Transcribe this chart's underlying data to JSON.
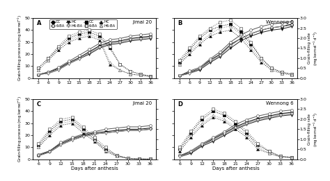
{
  "superior_x": [
    3,
    6,
    9,
    12,
    15,
    18,
    21,
    24,
    27,
    30,
    33,
    36
  ],
  "inferior_x": [
    6,
    9,
    12,
    15,
    18,
    21,
    24,
    27,
    30,
    33,
    36
  ],
  "A_process": {
    "CC": [
      3,
      5,
      8,
      13,
      17,
      22,
      27,
      30,
      31,
      33,
      34,
      35
    ],
    "6BA": [
      3,
      5,
      9,
      14,
      19,
      24,
      29,
      32,
      33,
      35,
      36,
      37
    ],
    "HC": [
      3,
      4,
      7,
      12,
      16,
      20,
      25,
      28,
      29,
      31,
      32,
      33
    ],
    "H6BA": [
      3,
      4,
      7,
      12,
      16,
      21,
      26,
      29,
      30,
      32,
      33,
      34
    ]
  },
  "A_rate": {
    "CC": [
      0.5,
      1.0,
      1.5,
      2.0,
      2.2,
      2.3,
      2.1,
      1.5,
      0.7,
      0.35,
      0.2,
      0.1
    ],
    "6BA": [
      0.5,
      1.0,
      1.6,
      2.1,
      2.3,
      2.4,
      2.2,
      1.6,
      0.7,
      0.35,
      0.2,
      0.1
    ],
    "HC": [
      0.4,
      0.9,
      1.4,
      1.8,
      2.0,
      2.1,
      1.9,
      0.7,
      0.4,
      0.2,
      0.15,
      0.08
    ],
    "H6BA": [
      0.4,
      0.9,
      1.5,
      1.9,
      2.1,
      2.2,
      2.0,
      0.8,
      0.4,
      0.2,
      0.15,
      0.08
    ]
  },
  "B_process": {
    "CC": [
      2,
      5,
      8,
      15,
      20,
      28,
      33,
      37,
      40,
      42,
      43,
      45
    ],
    "6BA": [
      2,
      6,
      9,
      16,
      22,
      30,
      36,
      40,
      43,
      45,
      46,
      47
    ],
    "HC": [
      2,
      4,
      7,
      13,
      18,
      25,
      31,
      35,
      38,
      40,
      41,
      43
    ],
    "H6BA": [
      2,
      4,
      8,
      14,
      19,
      27,
      33,
      37,
      40,
      42,
      43,
      44
    ]
  },
  "B_rate": {
    "CC": [
      0.8,
      1.4,
      2.0,
      2.4,
      2.6,
      2.7,
      2.3,
      1.7,
      1.0,
      0.5,
      0.3,
      0.2
    ],
    "6BA": [
      0.9,
      1.5,
      2.1,
      2.5,
      2.8,
      2.9,
      2.5,
      1.8,
      1.0,
      0.5,
      0.3,
      0.2
    ],
    "HC": [
      0.7,
      1.2,
      1.7,
      2.1,
      2.3,
      2.4,
      2.0,
      1.4,
      0.8,
      0.4,
      0.25,
      0.15
    ],
    "H6BA": [
      0.7,
      1.3,
      1.8,
      2.2,
      2.5,
      2.6,
      2.2,
      1.5,
      0.9,
      0.4,
      0.25,
      0.15
    ]
  },
  "C_process": {
    "CC": [
      3,
      7,
      13,
      17,
      20,
      22,
      23,
      24,
      25,
      25,
      26
    ],
    "6BA": [
      4,
      7,
      14,
      18,
      21,
      23,
      25,
      26,
      27,
      27,
      28
    ],
    "HC": [
      3,
      6,
      12,
      16,
      19,
      21,
      22,
      23,
      24,
      24,
      25
    ],
    "H6BA": [
      3,
      6,
      12,
      16,
      19,
      21,
      22,
      23,
      24,
      24,
      25
    ]
  },
  "C_rate": {
    "CC": [
      0.7,
      1.4,
      1.9,
      2.0,
      1.5,
      1.0,
      0.5,
      0.2,
      0.05,
      0.02,
      0.01
    ],
    "6BA": [
      0.8,
      1.5,
      2.0,
      2.1,
      1.6,
      1.1,
      0.6,
      0.2,
      0.05,
      0.02,
      0.01
    ],
    "HC": [
      0.6,
      1.2,
      1.7,
      1.8,
      1.3,
      0.9,
      0.4,
      0.15,
      0.04,
      0.02,
      0.01
    ],
    "H6BA": [
      0.6,
      1.3,
      1.8,
      1.9,
      1.4,
      0.95,
      0.45,
      0.15,
      0.04,
      0.02,
      0.01
    ]
  },
  "D_process": {
    "CC": [
      3,
      6,
      12,
      17,
      22,
      27,
      31,
      34,
      36,
      38,
      39
    ],
    "6BA": [
      3,
      7,
      13,
      18,
      23,
      29,
      33,
      36,
      38,
      40,
      41
    ],
    "HC": [
      2,
      5,
      11,
      15,
      20,
      25,
      29,
      32,
      34,
      36,
      37
    ],
    "H6BA": [
      2,
      6,
      12,
      16,
      21,
      26,
      30,
      33,
      35,
      37,
      38
    ]
  },
  "D_rate": {
    "CC": [
      0.5,
      1.3,
      2.0,
      2.4,
      2.2,
      1.8,
      1.3,
      0.7,
      0.4,
      0.15,
      0.1
    ],
    "6BA": [
      0.6,
      1.4,
      2.1,
      2.5,
      2.3,
      1.9,
      1.4,
      0.8,
      0.4,
      0.15,
      0.1
    ],
    "HC": [
      0.4,
      1.1,
      1.7,
      2.1,
      1.9,
      1.5,
      1.1,
      0.5,
      0.3,
      0.12,
      0.08
    ],
    "H6BA": [
      0.5,
      1.2,
      1.8,
      2.2,
      2.0,
      1.6,
      1.2,
      0.6,
      0.3,
      0.12,
      0.08
    ]
  },
  "bg_color": "#ffffff"
}
